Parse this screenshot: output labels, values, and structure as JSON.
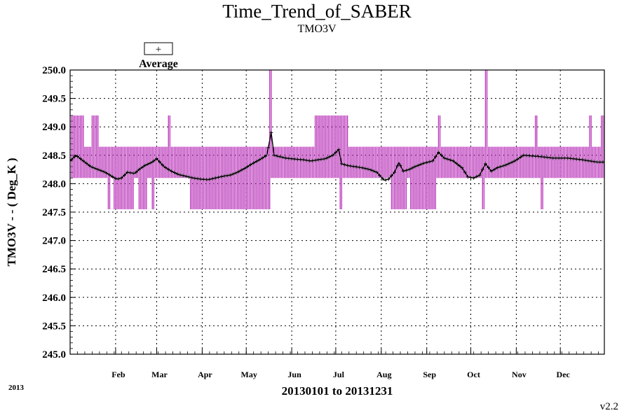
{
  "chart_data": {
    "type": "line",
    "title": "Time_Trend_of_SABER",
    "subtitle": "TMO3V",
    "ylabel": "TMO3V  - - ( Deg_K )",
    "xlabel": "20130101 to 20131231",
    "year_label": "2013",
    "version": "v2.2",
    "legend": {
      "label": "Average",
      "symbol": "+",
      "position": "top-left"
    },
    "ylim": [
      245.0,
      250.0
    ],
    "yticks": [
      "245.0",
      "245.5",
      "246.0",
      "246.5",
      "247.0",
      "247.5",
      "248.0",
      "248.5",
      "249.0",
      "249.5",
      "250.0"
    ],
    "xlim": [
      1,
      365
    ],
    "months": [
      {
        "label": "Feb",
        "day": 32
      },
      {
        "label": "Mar",
        "day": 60
      },
      {
        "label": "Apr",
        "day": 91
      },
      {
        "label": "May",
        "day": 121
      },
      {
        "label": "Jun",
        "day": 152
      },
      {
        "label": "Jul",
        "day": 182
      },
      {
        "label": "Aug",
        "day": 213
      },
      {
        "label": "Sep",
        "day": 244
      },
      {
        "label": "Oct",
        "day": 274
      },
      {
        "label": "Nov",
        "day": 305
      },
      {
        "label": "Dec",
        "day": 335
      }
    ],
    "grid": true,
    "series": [
      {
        "name": "Average",
        "color": "#000000",
        "x": [
          1,
          5,
          10,
          15,
          20,
          25,
          30,
          33,
          36,
          40,
          45,
          48,
          52,
          57,
          60,
          65,
          70,
          75,
          80,
          85,
          90,
          95,
          100,
          105,
          110,
          115,
          120,
          125,
          130,
          135,
          138,
          140,
          143,
          148,
          155,
          160,
          165,
          170,
          175,
          180,
          184,
          186,
          190,
          195,
          200,
          205,
          210,
          215,
          218,
          222,
          225,
          228,
          232,
          236,
          242,
          248,
          252,
          256,
          262,
          268,
          272,
          276,
          280,
          284,
          288,
          292,
          298,
          304,
          310,
          320,
          330,
          340,
          350,
          360,
          365
        ],
        "y": [
          248.4,
          248.5,
          248.4,
          248.3,
          248.25,
          248.2,
          248.12,
          248.08,
          248.1,
          248.2,
          248.18,
          248.25,
          248.32,
          248.38,
          248.44,
          248.3,
          248.22,
          248.16,
          248.13,
          248.1,
          248.08,
          248.07,
          248.1,
          248.13,
          248.15,
          248.2,
          248.27,
          248.35,
          248.42,
          248.5,
          248.9,
          248.5,
          248.48,
          248.45,
          248.43,
          248.42,
          248.4,
          248.42,
          248.44,
          248.5,
          248.6,
          248.35,
          248.32,
          248.3,
          248.28,
          248.25,
          248.2,
          248.06,
          248.08,
          248.2,
          248.37,
          248.22,
          248.25,
          248.3,
          248.36,
          248.4,
          248.55,
          248.45,
          248.4,
          248.28,
          248.12,
          248.1,
          248.15,
          248.35,
          248.22,
          248.28,
          248.33,
          248.4,
          248.5,
          248.48,
          248.45,
          248.45,
          248.42,
          248.38,
          248.38
        ]
      }
    ],
    "range_bars": {
      "name": "Min-Max",
      "color": "#b830b8",
      "typical_min": 248.1,
      "typical_max": 248.65,
      "upper_spikes": [
        {
          "x_start": 1,
          "x_end": 10,
          "max": 249.2
        },
        {
          "x_start": 16,
          "x_end": 20,
          "max": 249.2
        },
        {
          "x_start": 68,
          "x_end": 69,
          "max": 249.2
        },
        {
          "x_start": 137,
          "x_end": 138,
          "max": 250.0
        },
        {
          "x_start": 168,
          "x_end": 190,
          "max": 249.2
        },
        {
          "x_start": 252,
          "x_end": 253,
          "max": 249.2
        },
        {
          "x_start": 284,
          "x_end": 285,
          "max": 250.0
        },
        {
          "x_start": 318,
          "x_end": 319,
          "max": 249.2
        },
        {
          "x_start": 355,
          "x_end": 356,
          "max": 249.2
        },
        {
          "x_start": 363,
          "x_end": 365,
          "max": 249.2
        }
      ],
      "lower_spikes": [
        {
          "x_start": 27,
          "x_end": 28,
          "min": 247.55
        },
        {
          "x_start": 31,
          "x_end": 44,
          "min": 247.55
        },
        {
          "x_start": 48,
          "x_end": 53,
          "min": 247.55
        },
        {
          "x_start": 57,
          "x_end": 58,
          "min": 247.55
        },
        {
          "x_start": 83,
          "x_end": 137,
          "min": 247.55
        },
        {
          "x_start": 185,
          "x_end": 186,
          "min": 247.55
        },
        {
          "x_start": 220,
          "x_end": 230,
          "min": 247.55
        },
        {
          "x_start": 233,
          "x_end": 250,
          "min": 247.55
        },
        {
          "x_start": 282,
          "x_end": 283,
          "min": 247.55
        },
        {
          "x_start": 322,
          "x_end": 323,
          "min": 247.55
        }
      ]
    }
  }
}
